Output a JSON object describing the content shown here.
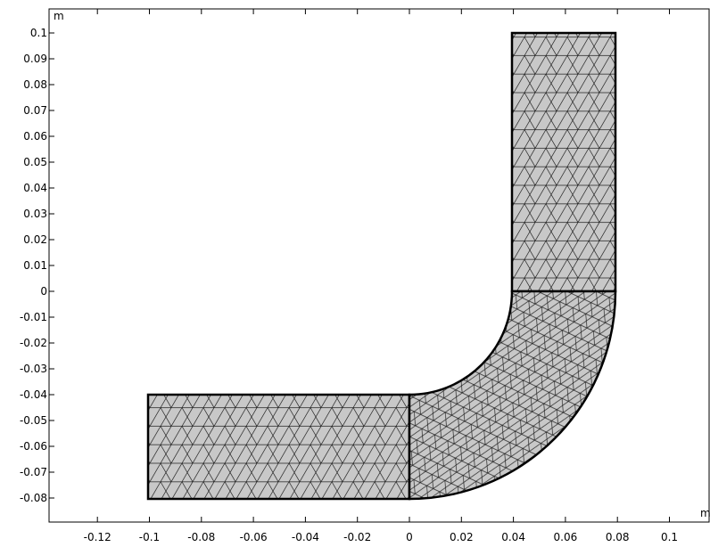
{
  "axes": {
    "x_unit": "m",
    "y_unit": "m",
    "xticks": [
      -0.12,
      -0.1,
      -0.08,
      -0.06,
      -0.04,
      -0.02,
      0,
      0.02,
      0.04,
      0.06,
      0.08,
      0.1
    ],
    "yticks": [
      0.1,
      0.09,
      0.08,
      0.07,
      0.06,
      0.05,
      0.04,
      0.03,
      0.02,
      0.01,
      0,
      -0.01,
      -0.02,
      -0.03,
      -0.04,
      -0.05,
      -0.06,
      -0.07,
      -0.08
    ]
  }
}
